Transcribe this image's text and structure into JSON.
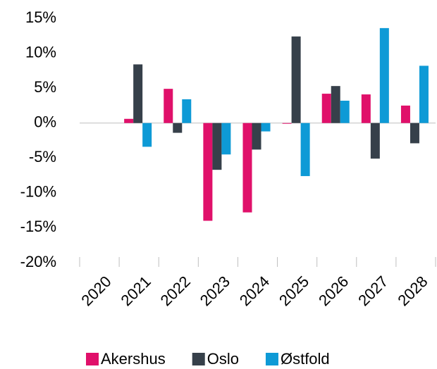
{
  "chart_data": {
    "type": "bar",
    "categories": [
      "2020",
      "2021",
      "2022",
      "2023",
      "2024",
      "2025",
      "2026",
      "2027",
      "2028"
    ],
    "series": [
      {
        "name": "Akershus",
        "color": "#e0106a",
        "values": [
          null,
          0.6,
          4.9,
          -14,
          -12.8,
          -0.1,
          4.2,
          4.1,
          2.5
        ]
      },
      {
        "name": "Oslo",
        "color": "#36404a",
        "values": [
          null,
          8.4,
          -1.4,
          -6.7,
          -3.8,
          12.4,
          5.3,
          -5.1,
          -2.9
        ]
      },
      {
        "name": "Østfold",
        "color": "#0e9ad6",
        "values": [
          null,
          -3.4,
          3.4,
          -4.5,
          -1.2,
          -7.6,
          3.2,
          13.6,
          8.2
        ]
      }
    ],
    "ylim": [
      -20,
      15
    ],
    "yticks": [
      {
        "value": -20,
        "label": "-20%"
      },
      {
        "value": -15,
        "label": "-15%"
      },
      {
        "value": -10,
        "label": "-10%"
      },
      {
        "value": -5,
        "label": "-5%"
      },
      {
        "value": 0,
        "label": "0%"
      },
      {
        "value": 5,
        "label": "5%"
      },
      {
        "value": 10,
        "label": "10%"
      },
      {
        "value": 15,
        "label": "15%"
      }
    ],
    "grid": false,
    "legend": "bottom"
  }
}
